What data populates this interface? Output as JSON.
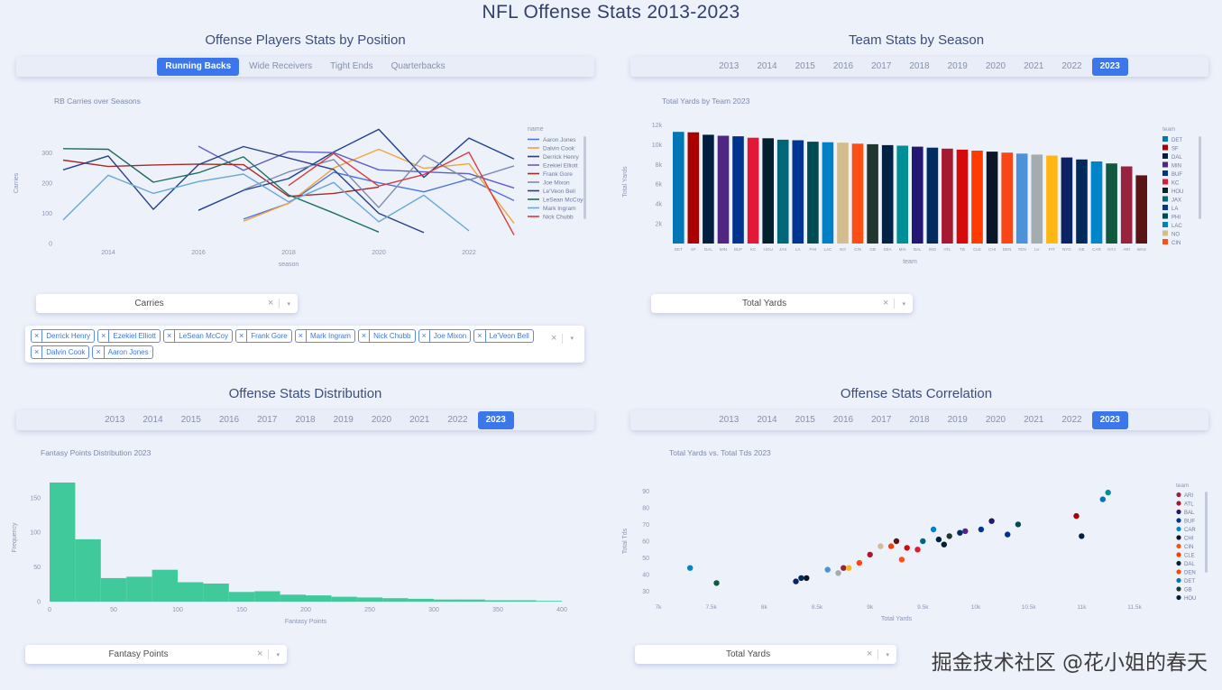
{
  "page": {
    "title": "NFL Offense Stats 2013-2023",
    "watermark": "掘金技术社区 @花小姐的春天"
  },
  "icons": {
    "clear": "×",
    "caret": "▾"
  },
  "colors": {
    "accent": "#3b76ea",
    "title": "#31406f",
    "histogram_green": "#40ca9b"
  },
  "sections": {
    "players": {
      "title": "Offense Players Stats by Position",
      "tabs": [
        "Running Backs",
        "Wide Receivers",
        "Tight Ends",
        "Quarterbacks"
      ],
      "active_tab": "Running Backs",
      "stat_select": {
        "value": "Carries"
      },
      "player_select": {
        "tags": [
          "Derrick Henry",
          "Ezekiel Elliott",
          "LeSean McCoy",
          "Frank Gore",
          "Mark Ingram",
          "Nick Chubb",
          "Joe Mixon",
          "Le'Veon Bell",
          "Dalvin Cook",
          "Aaron Jones"
        ]
      }
    },
    "teams": {
      "title": "Team Stats by Season",
      "tabs": [
        "2013",
        "2014",
        "2015",
        "2016",
        "2017",
        "2018",
        "2019",
        "2020",
        "2021",
        "2022",
        "2023"
      ],
      "active_tab": "2023",
      "stat_select": {
        "value": "Total Yards"
      }
    },
    "distribution": {
      "title": "Offense Stats Distribution",
      "tabs": [
        "2013",
        "2014",
        "2015",
        "2016",
        "2017",
        "2018",
        "2019",
        "2020",
        "2021",
        "2022",
        "2023"
      ],
      "active_tab": "2023",
      "stat_select": {
        "value": "Fantasy Points"
      }
    },
    "correlation": {
      "title": "Offense Stats Correlation",
      "tabs": [
        "2013",
        "2014",
        "2015",
        "2016",
        "2017",
        "2018",
        "2019",
        "2020",
        "2021",
        "2022",
        "2023"
      ],
      "active_tab": "2023",
      "stat_select": {
        "value": "Total Yards"
      }
    }
  },
  "chart_data": [
    {
      "id": "rb-carries",
      "type": "line",
      "title": "RB Carries over Seasons",
      "xlabel": "season",
      "ylabel": "Carries",
      "legend_title": "name",
      "legend_position": "right",
      "grid": false,
      "xlim": [
        2013,
        2023
      ],
      "ylim": [
        0,
        400
      ],
      "xticks": [
        2014,
        2016,
        2018,
        2020,
        2022
      ],
      "yticks": [
        0,
        100,
        200,
        300
      ],
      "series": [
        {
          "name": "Aaron Jones",
          "color": "#4a74e0",
          "points": [
            [
              2017,
              81
            ],
            [
              2018,
              133
            ],
            [
              2019,
              236
            ],
            [
              2020,
              201
            ],
            [
              2021,
              171
            ],
            [
              2022,
              213
            ],
            [
              2023,
              142
            ]
          ]
        },
        {
          "name": "Dalvin Cook",
          "color": "#f2a33a",
          "points": [
            [
              2017,
              74
            ],
            [
              2018,
              133
            ],
            [
              2019,
              250
            ],
            [
              2020,
              312
            ],
            [
              2021,
              249
            ],
            [
              2022,
              264
            ],
            [
              2023,
              67
            ]
          ]
        },
        {
          "name": "Derrick Henry",
          "color": "#1e3f8f",
          "points": [
            [
              2016,
              110
            ],
            [
              2017,
              176
            ],
            [
              2018,
              215
            ],
            [
              2019,
              303
            ],
            [
              2020,
              378
            ],
            [
              2021,
              219
            ],
            [
              2022,
              349
            ],
            [
              2023,
              280
            ]
          ]
        },
        {
          "name": "Ezekiel Elliott",
          "color": "#5f5fc4",
          "points": [
            [
              2016,
              322
            ],
            [
              2017,
              242
            ],
            [
              2018,
              304
            ],
            [
              2019,
              301
            ],
            [
              2020,
              244
            ],
            [
              2021,
              237
            ],
            [
              2022,
              231
            ],
            [
              2023,
              184
            ]
          ]
        },
        {
          "name": "Frank Gore",
          "color": "#a52a2a",
          "points": [
            [
              2013,
              276
            ],
            [
              2014,
              255
            ],
            [
              2015,
              260
            ],
            [
              2016,
              263
            ],
            [
              2017,
              261
            ],
            [
              2018,
              156
            ],
            [
              2019,
              166
            ],
            [
              2020,
              187
            ]
          ]
        },
        {
          "name": "Joe Mixon",
          "color": "#7d8bb0",
          "points": [
            [
              2017,
              178
            ],
            [
              2018,
              237
            ],
            [
              2019,
              278
            ],
            [
              2020,
              119
            ],
            [
              2021,
              292
            ],
            [
              2022,
              210
            ],
            [
              2023,
              257
            ]
          ]
        },
        {
          "name": "Le'Veon Bell",
          "color": "#27408b",
          "points": [
            [
              2013,
              244
            ],
            [
              2014,
              290
            ],
            [
              2015,
              113
            ],
            [
              2016,
              261
            ],
            [
              2017,
              321
            ],
            [
              2019,
              245
            ],
            [
              2020,
              100
            ],
            [
              2021,
              36
            ]
          ]
        },
        {
          "name": "LeSean McCoy",
          "color": "#1d6e5e",
          "points": [
            [
              2013,
              314
            ],
            [
              2014,
              312
            ],
            [
              2015,
              203
            ],
            [
              2016,
              234
            ],
            [
              2017,
              287
            ],
            [
              2018,
              161
            ],
            [
              2019,
              101
            ],
            [
              2020,
              38
            ]
          ]
        },
        {
          "name": "Mark Ingram",
          "color": "#67a9d8",
          "points": [
            [
              2013,
              78
            ],
            [
              2014,
              226
            ],
            [
              2015,
              166
            ],
            [
              2016,
              205
            ],
            [
              2017,
              230
            ],
            [
              2018,
              138
            ],
            [
              2019,
              202
            ],
            [
              2020,
              72
            ],
            [
              2021,
              160
            ],
            [
              2022,
              42
            ]
          ]
        },
        {
          "name": "Nick Chubb",
          "color": "#d93b3b",
          "points": [
            [
              2018,
              192
            ],
            [
              2019,
              298
            ],
            [
              2020,
              190
            ],
            [
              2021,
              228
            ],
            [
              2022,
              302
            ],
            [
              2023,
              28
            ]
          ]
        }
      ]
    },
    {
      "id": "team-total-yards",
      "type": "bar",
      "title": "Total Yards by Team 2023",
      "xlabel": "team",
      "ylabel": "Total Yards",
      "legend_title": "team",
      "legend_position": "right",
      "grid": false,
      "ylim": [
        0,
        12500
      ],
      "yticks": [
        2000,
        4000,
        6000,
        8000,
        10000,
        12000
      ],
      "ytick_labels": [
        "2k",
        "4k",
        "6k",
        "8k",
        "10k",
        "12k"
      ],
      "categories": [
        "DET",
        "SF",
        "DAL",
        "MIN",
        "BUF",
        "KC",
        "HOU",
        "JAX",
        "LA",
        "PHI",
        "LAC",
        "NO",
        "CIN",
        "GB",
        "SEA",
        "MIA",
        "BAL",
        "IND",
        "ATL",
        "TB",
        "CLE",
        "CHI",
        "DEN",
        "TEN",
        "LV",
        "PIT",
        "NYG",
        "NE",
        "CAR",
        "NYJ",
        "ARI",
        "WAS"
      ],
      "values": [
        11300,
        11250,
        11000,
        10900,
        10850,
        10700,
        10650,
        10500,
        10450,
        10300,
        10250,
        10200,
        10100,
        10050,
        9950,
        9900,
        9800,
        9700,
        9600,
        9500,
        9400,
        9300,
        9200,
        9100,
        9000,
        8900,
        8700,
        8500,
        8300,
        8100,
        7800,
        6900
      ],
      "colors": [
        "#0076b6",
        "#aa0000",
        "#041e42",
        "#4f2683",
        "#00338d",
        "#e31837",
        "#03202f",
        "#006778",
        "#003594",
        "#004c54",
        "#0080c6",
        "#d3bc8d",
        "#fb4f14",
        "#203731",
        "#002244",
        "#008e97",
        "#241773",
        "#002c5f",
        "#a71930",
        "#d50a0a",
        "#ff3c00",
        "#0b162a",
        "#fa4616",
        "#4b92db",
        "#a5acaf",
        "#ffb612",
        "#0b2265",
        "#002a5c",
        "#0085ca",
        "#125740",
        "#97233f",
        "#5a1414"
      ]
    },
    {
      "id": "fantasy-distribution",
      "type": "histogram",
      "title": "Fantasy Points Distribution 2023",
      "xlabel": "Fantasy Points",
      "ylabel": "Frequency",
      "color": "#40ca9b",
      "grid": false,
      "bin_start": 0,
      "bin_width": 20,
      "counts": [
        172,
        90,
        34,
        36,
        46,
        28,
        26,
        14,
        15,
        10,
        9,
        7,
        6,
        5,
        4,
        3,
        3,
        2,
        2,
        1
      ],
      "xlim": [
        0,
        400
      ],
      "xticks": [
        0,
        50,
        100,
        150,
        200,
        250,
        300,
        350,
        400
      ],
      "ylim": [
        0,
        185
      ],
      "yticks": [
        0,
        50,
        100,
        150
      ]
    },
    {
      "id": "yards-vs-tds",
      "type": "scatter",
      "title": "Total Yards vs. Total Tds 2023",
      "xlabel": "Total Yards",
      "ylabel": "Total Tds",
      "legend_title": "team",
      "legend_position": "right",
      "grid": false,
      "xlim": [
        7000,
        11500
      ],
      "ylim": [
        25,
        95
      ],
      "xticks": [
        7000,
        7500,
        8000,
        8500,
        9000,
        9500,
        10000,
        10500,
        11000,
        11500
      ],
      "xtick_labels": [
        "7k",
        "7.5k",
        "8k",
        "8.5k",
        "9k",
        "9.5k",
        "10k",
        "10.5k",
        "11k",
        "11.5k"
      ],
      "yticks": [
        30,
        40,
        50,
        60,
        70,
        80,
        90
      ],
      "points": [
        {
          "team": "ARI",
          "x": 8750,
          "y": 44,
          "color": "#97233f"
        },
        {
          "team": "ATL",
          "x": 9000,
          "y": 52,
          "color": "#a71930"
        },
        {
          "team": "BAL",
          "x": 10150,
          "y": 72,
          "color": "#241773"
        },
        {
          "team": "BUF",
          "x": 10300,
          "y": 64,
          "color": "#00338d"
        },
        {
          "team": "CAR",
          "x": 7300,
          "y": 44,
          "color": "#0085ca"
        },
        {
          "team": "CHI",
          "x": 8400,
          "y": 38,
          "color": "#0b162a"
        },
        {
          "team": "CIN",
          "x": 9300,
          "y": 49,
          "color": "#fb4f14"
        },
        {
          "team": "CLE",
          "x": 9200,
          "y": 57,
          "color": "#ff3c00"
        },
        {
          "team": "DAL",
          "x": 11000,
          "y": 63,
          "color": "#041e42"
        },
        {
          "team": "DEN",
          "x": 8900,
          "y": 47,
          "color": "#fa4616"
        },
        {
          "team": "DET",
          "x": 11200,
          "y": 85,
          "color": "#0076b6"
        },
        {
          "team": "GB",
          "x": 9750,
          "y": 63,
          "color": "#203731"
        },
        {
          "team": "HOU",
          "x": 9700,
          "y": 58,
          "color": "#03202f"
        },
        {
          "team": "IND",
          "x": 9850,
          "y": 65,
          "color": "#002c5f"
        },
        {
          "team": "JAX",
          "x": 9500,
          "y": 60,
          "color": "#006778"
        },
        {
          "team": "KC",
          "x": 9450,
          "y": 55,
          "color": "#e31837"
        },
        {
          "team": "LAC",
          "x": 9600,
          "y": 67,
          "color": "#0080c6"
        },
        {
          "team": "LA",
          "x": 10050,
          "y": 67,
          "color": "#003594"
        },
        {
          "team": "LV",
          "x": 8700,
          "y": 41,
          "color": "#a5acaf"
        },
        {
          "team": "MIA",
          "x": 11250,
          "y": 89,
          "color": "#008e97"
        },
        {
          "team": "MIN",
          "x": 9900,
          "y": 66,
          "color": "#4f2683"
        },
        {
          "team": "NE",
          "x": 8350,
          "y": 38,
          "color": "#002a5c"
        },
        {
          "team": "NO",
          "x": 9100,
          "y": 57,
          "color": "#d3bc8d"
        },
        {
          "team": "NYG",
          "x": 8300,
          "y": 36,
          "color": "#0b2265"
        },
        {
          "team": "NYJ",
          "x": 7550,
          "y": 35,
          "color": "#125740"
        },
        {
          "team": "PHI",
          "x": 10400,
          "y": 70,
          "color": "#004c54"
        },
        {
          "team": "PIT",
          "x": 8800,
          "y": 44,
          "color": "#ffb612"
        },
        {
          "team": "SEA",
          "x": 9650,
          "y": 61,
          "color": "#002244"
        },
        {
          "team": "SF",
          "x": 10950,
          "y": 75,
          "color": "#aa0000"
        },
        {
          "team": "TB",
          "x": 9350,
          "y": 56,
          "color": "#d50a0a"
        },
        {
          "team": "TEN",
          "x": 8600,
          "y": 43,
          "color": "#4b92db"
        },
        {
          "team": "WAS",
          "x": 9250,
          "y": 60,
          "color": "#5a1414"
        }
      ]
    }
  ]
}
